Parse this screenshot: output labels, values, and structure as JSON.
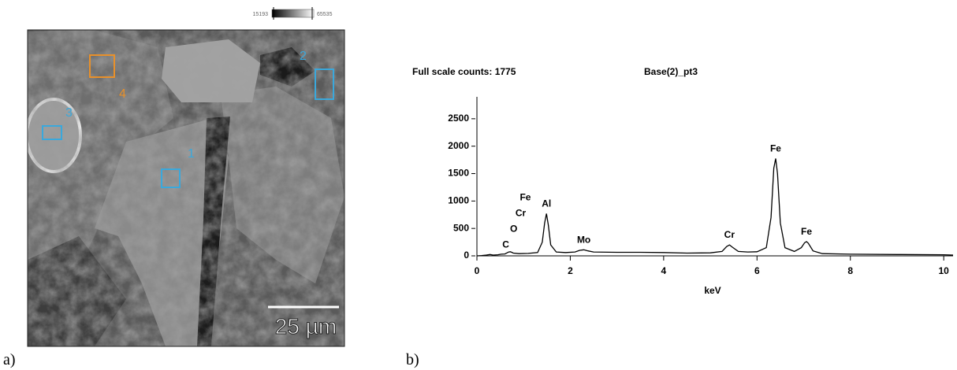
{
  "panel_a": {
    "label": "a)",
    "colorbar": {
      "min": 15193,
      "max": 65535
    },
    "regions": [
      {
        "label": "1",
        "color": "#3aa8dc"
      },
      {
        "label": "2",
        "color": "#3aa8dc"
      },
      {
        "label": "3",
        "color": "#3aa8dc"
      },
      {
        "label": "4",
        "color": "#e8902a"
      }
    ],
    "scale_bar": "25 µm"
  },
  "panel_b": {
    "label": "b)"
  },
  "chart_data": {
    "type": "line",
    "title": "Full scale counts: 1775",
    "subtitle": "Base(2)_pt3",
    "x_label": "keV",
    "x": [
      0,
      0.1,
      0.2,
      0.28,
      0.35,
      0.45,
      0.52,
      0.6,
      0.68,
      0.72,
      0.78,
      0.9,
      1.1,
      1.3,
      1.4,
      1.45,
      1.49,
      1.53,
      1.58,
      1.7,
      1.9,
      2.1,
      2.2,
      2.29,
      2.38,
      2.5,
      3.0,
      3.5,
      4.0,
      4.5,
      5.0,
      5.25,
      5.35,
      5.41,
      5.47,
      5.6,
      5.8,
      6.0,
      6.2,
      6.3,
      6.36,
      6.4,
      6.44,
      6.5,
      6.6,
      6.8,
      6.95,
      7.02,
      7.06,
      7.1,
      7.2,
      7.4,
      8,
      9,
      10,
      10.2
    ],
    "values": [
      0,
      5,
      15,
      25,
      15,
      20,
      30,
      35,
      70,
      75,
      50,
      40,
      45,
      60,
      250,
      600,
      770,
      560,
      200,
      70,
      60,
      70,
      100,
      110,
      90,
      70,
      65,
      65,
      60,
      50,
      55,
      80,
      170,
      200,
      160,
      80,
      70,
      75,
      150,
      700,
      1600,
      1775,
      1500,
      600,
      150,
      80,
      150,
      240,
      260,
      230,
      90,
      40,
      30,
      25,
      20,
      15
    ],
    "color": "#000000",
    "xlim": [
      0,
      10.2
    ],
    "ylim": [
      0,
      2900
    ],
    "xticks": [
      0,
      2,
      4,
      6,
      8,
      10
    ],
    "yticks": [
      0,
      500,
      1000,
      1500,
      2000,
      2500
    ],
    "annotations": [
      {
        "text": "C",
        "x": 0.28
      },
      {
        "text": "O",
        "x": 0.45
      },
      {
        "text": "Cr",
        "x": 0.6
      },
      {
        "text": "Fe",
        "x": 0.7
      },
      {
        "text": "Al",
        "x": 1.49
      },
      {
        "text": "Mo",
        "x": 2.29
      },
      {
        "text": "Cr",
        "x": 5.41
      },
      {
        "text": "Fe",
        "x": 6.4
      },
      {
        "text": "Fe",
        "x": 7.06
      }
    ]
  }
}
